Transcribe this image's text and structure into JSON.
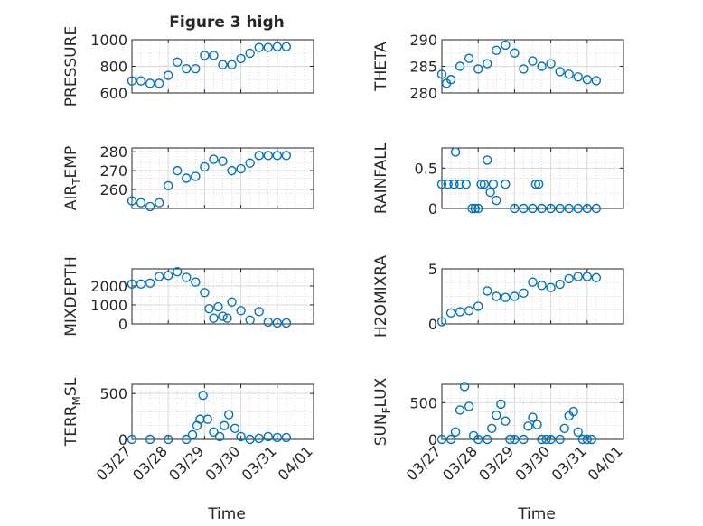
{
  "figure": {
    "title": "Figure 3 high",
    "x_title": "Time"
  },
  "style": {
    "marker_color": "#0072BD",
    "axis_color": "#262626",
    "grid_color": "#d9d9d9"
  },
  "x_axis": {
    "start": "03/27",
    "end": "04/01",
    "ticks": [
      {
        "label": "03/27",
        "day": 0
      },
      {
        "label": "03/28",
        "day": 1
      },
      {
        "label": "03/29",
        "day": 2
      },
      {
        "label": "03/30",
        "day": 3
      },
      {
        "label": "03/31",
        "day": 4
      },
      {
        "label": "04/01",
        "day": 5
      }
    ]
  },
  "chart_data": [
    {
      "type": "scatter",
      "ylabel": "PRESSURE",
      "ylim": [
        600,
        1000
      ],
      "yticks": [
        600,
        800,
        1000
      ],
      "grid": true,
      "x": [
        "03/27 00:00",
        "03/27 06:00",
        "03/27 12:00",
        "03/27 18:00",
        "03/28 00:00",
        "03/28 06:00",
        "03/28 12:00",
        "03/28 18:00",
        "03/29 00:00",
        "03/29 06:00",
        "03/29 12:00",
        "03/29 18:00",
        "03/30 00:00",
        "03/30 06:00",
        "03/30 12:00",
        "03/30 18:00",
        "03/31 00:00",
        "03/31 06:00"
      ],
      "y": [
        690,
        690,
        672,
        672,
        732,
        832,
        782,
        782,
        882,
        882,
        812,
        812,
        858,
        898,
        942,
        942,
        948,
        948
      ]
    },
    {
      "type": "scatter",
      "ylabel": "THETA",
      "ylim": [
        280,
        290
      ],
      "yticks": [
        280,
        285,
        290
      ],
      "grid": true,
      "x": [
        "03/27 00:00",
        "03/27 03:00",
        "03/27 06:00",
        "03/27 12:00",
        "03/27 18:00",
        "03/28 00:00",
        "03/28 06:00",
        "03/28 12:00",
        "03/28 18:00",
        "03/29 00:00",
        "03/29 06:00",
        "03/29 12:00",
        "03/29 18:00",
        "03/30 00:00",
        "03/30 06:00",
        "03/30 12:00",
        "03/30 18:00",
        "03/31 00:00",
        "03/31 06:00"
      ],
      "y": [
        283.5,
        281.8,
        282.5,
        285.0,
        286.5,
        284.5,
        285.5,
        288.0,
        289.0,
        287.5,
        284.5,
        286.0,
        285.0,
        285.5,
        284.0,
        283.5,
        283.0,
        282.5,
        282.3
      ]
    },
    {
      "type": "scatter",
      "ylabel": "AIR_TEMP",
      "ylim": [
        250,
        282
      ],
      "yticks": [
        260,
        270,
        280
      ],
      "grid": true,
      "x": [
        "03/27 00:00",
        "03/27 06:00",
        "03/27 12:00",
        "03/27 18:00",
        "03/28 00:00",
        "03/28 06:00",
        "03/28 12:00",
        "03/28 18:00",
        "03/29 00:00",
        "03/29 06:00",
        "03/29 12:00",
        "03/29 18:00",
        "03/30 00:00",
        "03/30 06:00",
        "03/30 12:00",
        "03/30 18:00",
        "03/31 00:00",
        "03/31 06:00"
      ],
      "y": [
        254,
        253,
        251,
        253,
        262,
        270,
        266,
        267,
        272,
        276,
        275,
        270,
        271,
        274,
        278,
        278,
        278,
        278
      ]
    },
    {
      "type": "scatter",
      "ylabel": "RAINFALL",
      "ylim": [
        0,
        0.75
      ],
      "yticks": [
        0,
        0.5
      ],
      "grid": true,
      "x": [
        "03/27 00:00",
        "03/27 04:00",
        "03/27 08:00",
        "03/27 09:00",
        "03/27 12:00",
        "03/27 16:00",
        "03/27 20:00",
        "03/27 22:00",
        "03/28 00:00",
        "03/28 02:00",
        "03/28 04:00",
        "03/28 06:00",
        "03/28 08:00",
        "03/28 10:00",
        "03/28 12:00",
        "03/28 18:00",
        "03/29 00:00",
        "03/29 06:00",
        "03/29 12:00",
        "03/29 14:00",
        "03/29 16:00",
        "03/29 18:00",
        "03/30 00:00",
        "03/30 06:00",
        "03/30 12:00",
        "03/30 18:00",
        "03/31 00:00",
        "03/31 06:00"
      ],
      "y": [
        0.3,
        0.3,
        0.3,
        0.7,
        0.3,
        0.3,
        0.0,
        0.0,
        0.0,
        0.3,
        0.3,
        0.6,
        0.2,
        0.3,
        0.1,
        0.3,
        0.0,
        0.0,
        0.0,
        0.3,
        0.3,
        0.0,
        0.0,
        0.0,
        0.0,
        0.0,
        0.0,
        0.0
      ]
    },
    {
      "type": "scatter",
      "ylabel": "MIXDEPTH",
      "ylim": [
        0,
        2900
      ],
      "yticks": [
        0,
        1000,
        2000
      ],
      "grid": true,
      "x": [
        "03/27 00:00",
        "03/27 06:00",
        "03/27 12:00",
        "03/27 18:00",
        "03/28 00:00",
        "03/28 06:00",
        "03/28 12:00",
        "03/28 18:00",
        "03/29 00:00",
        "03/29 03:00",
        "03/29 06:00",
        "03/29 09:00",
        "03/29 12:00",
        "03/29 15:00",
        "03/29 18:00",
        "03/30 00:00",
        "03/30 06:00",
        "03/30 12:00",
        "03/30 18:00",
        "03/31 00:00",
        "03/31 06:00"
      ],
      "y": [
        2100,
        2100,
        2150,
        2500,
        2550,
        2750,
        2450,
        2200,
        1650,
        800,
        300,
        900,
        400,
        300,
        1150,
        700,
        200,
        650,
        100,
        50,
        50
      ]
    },
    {
      "type": "scatter",
      "ylabel": "H2OMIXRA",
      "ylim": [
        0,
        5
      ],
      "yticks": [
        0,
        5
      ],
      "grid": true,
      "x": [
        "03/27 00:00",
        "03/27 06:00",
        "03/27 12:00",
        "03/27 18:00",
        "03/28 00:00",
        "03/28 06:00",
        "03/28 12:00",
        "03/28 18:00",
        "03/29 00:00",
        "03/29 06:00",
        "03/29 12:00",
        "03/29 18:00",
        "03/30 00:00",
        "03/30 06:00",
        "03/30 12:00",
        "03/30 18:00",
        "03/31 00:00",
        "03/31 06:00"
      ],
      "y": [
        0.2,
        1.0,
        1.1,
        1.2,
        1.6,
        3.0,
        2.5,
        2.4,
        2.5,
        2.8,
        3.8,
        3.5,
        3.3,
        3.6,
        4.1,
        4.3,
        4.3,
        4.2
      ]
    },
    {
      "type": "scatter",
      "ylabel": "TERR_MSL",
      "ylim": [
        0,
        600
      ],
      "yticks": [
        0,
        500
      ],
      "grid": true,
      "x": [
        "03/27 00:00",
        "03/27 12:00",
        "03/28 00:00",
        "03/28 12:00",
        "03/28 16:00",
        "03/28 19:00",
        "03/28 21:00",
        "03/28 23:00",
        "03/29 02:00",
        "03/29 06:00",
        "03/29 10:00",
        "03/29 13:00",
        "03/29 16:00",
        "03/29 20:00",
        "03/30 00:00",
        "03/30 06:00",
        "03/30 12:00",
        "03/30 18:00",
        "03/31 00:00",
        "03/31 06:00"
      ],
      "y": [
        0,
        0,
        0,
        0,
        50,
        150,
        220,
        480,
        220,
        80,
        30,
        150,
        270,
        120,
        30,
        0,
        10,
        30,
        20,
        20
      ]
    },
    {
      "type": "scatter",
      "ylabel": "SUN_FLUX",
      "ylim": [
        0,
        750
      ],
      "yticks": [
        0,
        500
      ],
      "grid": true,
      "x": [
        "03/27 00:00",
        "03/27 06:00",
        "03/27 09:00",
        "03/27 12:00",
        "03/27 15:00",
        "03/27 18:00",
        "03/27 21:00",
        "03/28 00:00",
        "03/28 06:00",
        "03/28 09:00",
        "03/28 12:00",
        "03/28 15:00",
        "03/28 18:00",
        "03/28 21:00",
        "03/29 00:00",
        "03/29 06:00",
        "03/29 09:00",
        "03/29 12:00",
        "03/29 15:00",
        "03/29 18:00",
        "03/29 21:00",
        "03/30 00:00",
        "03/30 06:00",
        "03/30 09:00",
        "03/30 12:00",
        "03/30 15:00",
        "03/30 18:00",
        "03/30 21:00",
        "03/31 00:00",
        "03/31 03:00"
      ],
      "y": [
        0,
        0,
        100,
        400,
        720,
        450,
        50,
        0,
        0,
        150,
        330,
        480,
        250,
        0,
        0,
        0,
        180,
        300,
        200,
        0,
        0,
        0,
        0,
        150,
        320,
        380,
        100,
        0,
        0,
        0
      ]
    }
  ]
}
